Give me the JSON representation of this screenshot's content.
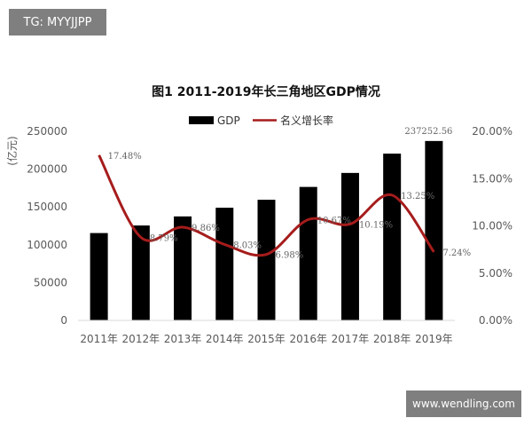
{
  "watermarks": {
    "top": "TG: MYYJJPP",
    "bottom": "www.wendling.com"
  },
  "colors": {
    "bar": "#000000",
    "line": "#a61c1c",
    "axis": "#d9d9d9"
  },
  "chart_data": {
    "type": "bar",
    "title": "图1   2011-2019年长三角地区GDP情况",
    "ylabel": "(亿元)",
    "categories": [
      "2011年",
      "2012年",
      "2013年",
      "2014年",
      "2015年",
      "2016年",
      "2017年",
      "2018年",
      "2019年"
    ],
    "series": [
      {
        "name": "GDP",
        "type": "bar",
        "axis": "left",
        "values": [
          115500,
          125500,
          137500,
          149000,
          159500,
          176500,
          195000,
          220500,
          237252.56
        ],
        "labels": [
          "",
          "",
          "",
          "",
          "",
          "",
          "",
          "",
          "237252.56"
        ]
      },
      {
        "name": "名义增长率",
        "type": "line",
        "axis": "right",
        "values": [
          17.48,
          8.79,
          9.86,
          8.03,
          6.98,
          10.67,
          10.19,
          13.25,
          7.24
        ],
        "labels": [
          "17.48%",
          "8.79%",
          "9.86%",
          "8.03%",
          "6.98%",
          "10.67%",
          "10.19%",
          "13.25%",
          "7.24%"
        ]
      }
    ],
    "ylim": [
      0,
      250000
    ],
    "yticks": [
      "0",
      "50000",
      "100000",
      "150000",
      "200000",
      "250000"
    ],
    "y2lim": [
      0,
      20
    ],
    "y2ticks": [
      "0.00%",
      "5.00%",
      "10.00%",
      "15.00%",
      "20.00%"
    ],
    "legend": "top-center",
    "grid": false
  }
}
